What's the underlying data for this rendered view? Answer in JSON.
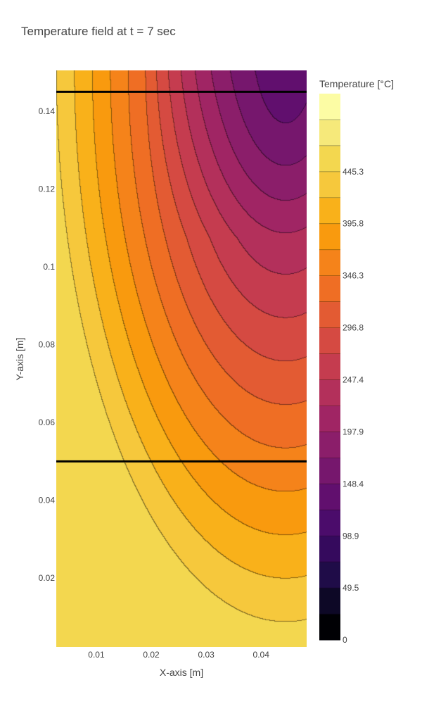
{
  "chart_data": {
    "type": "contour",
    "title": "Temperature field at t = 7 sec",
    "xlabel": "X-axis [m]",
    "ylabel": "Y-axis [m]",
    "xlim": [
      0.0027,
      0.0483
    ],
    "ylim": [
      0.0023,
      0.1505
    ],
    "x_ticks": [
      0.01,
      0.02,
      0.03,
      0.04
    ],
    "x_tick_labels": [
      "0.01",
      "0.02",
      "0.03",
      "0.04"
    ],
    "y_ticks": [
      0.02,
      0.04,
      0.06,
      0.08,
      0.1,
      0.12,
      0.14
    ],
    "y_tick_labels": [
      "0.02",
      "0.04",
      "0.06",
      "0.08",
      "0.1",
      "0.12",
      "0.14"
    ],
    "colorbar": {
      "title": "Temperature [°C]",
      "min": 0,
      "max": 494.7,
      "level_step": 24.735,
      "tick_values": [
        0,
        49.5,
        98.9,
        148.4,
        197.9,
        247.4,
        296.8,
        346.3,
        395.8,
        445.3
      ],
      "tick_labels": [
        "0",
        "49.5",
        "98.9",
        "148.4",
        "197.9",
        "247.4",
        "296.8",
        "346.3",
        "395.8",
        "445.3"
      ],
      "colorscale": "Inferno",
      "colors": [
        "#000004",
        "#0d0826",
        "#1f0c48",
        "#350a5d",
        "#4b0c6b",
        "#610f6e",
        "#76176d",
        "#8b1e6a",
        "#a02564",
        "#b3305b",
        "#c53c4f",
        "#d54a42",
        "#e35b33",
        "#ef6e24",
        "#f5831a",
        "#f99a0e",
        "#f9b11a",
        "#f6c83c",
        "#f3d74f",
        "#f6e97a",
        "#fcfca4"
      ]
    },
    "horizontal_lines": [
      {
        "y": 0.145,
        "color": "#000000"
      },
      {
        "y": 0.05,
        "color": "#000000"
      }
    ],
    "field_description": "Temperature field: coolest at the top-right corner (~130 °C), increasing toward the lower-left (~460–470 °C)."
  }
}
